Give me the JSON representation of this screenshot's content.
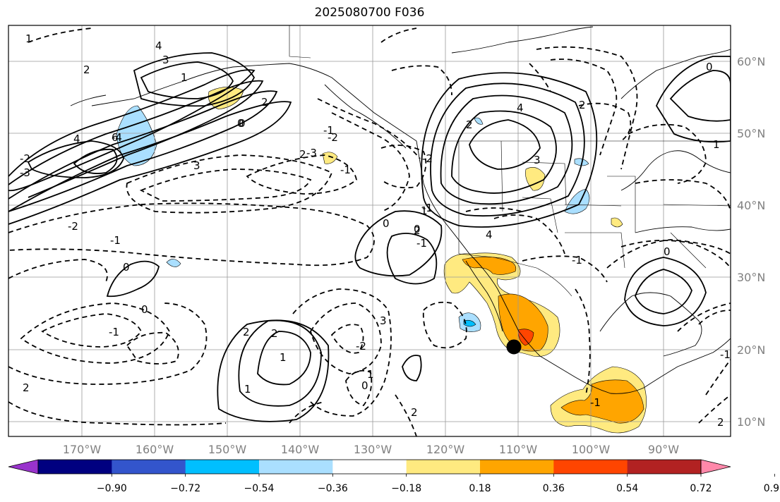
{
  "title": "2025080700 F036",
  "lon_labels": [
    "170°W",
    "160°W",
    "150°W",
    "140°W",
    "130°W",
    "120°W",
    "110°W",
    "100°W",
    "90°W"
  ],
  "lat_labels": [
    "60°N",
    "50°N",
    "40°N",
    "30°N",
    "20°N",
    "10°N"
  ],
  "colorbar": {
    "colors": [
      "#9933cc",
      "#000080",
      "#3355cc",
      "#00bfff",
      "#aadfff",
      "#ffffff",
      "#ffea80",
      "#ffa500",
      "#ff4500",
      "#b22222",
      "#ff88aa"
    ],
    "ticks": [
      "−0.90",
      "−0.72",
      "−0.54",
      "−0.36",
      "−0.18",
      "0.18",
      "0.36",
      "0.54",
      "0.72",
      "0.90"
    ]
  },
  "contour_labels": [
    "1",
    "2",
    "3",
    "4",
    "6",
    "1",
    "2",
    "0",
    "-1",
    "-2",
    "-3",
    "-4",
    "6",
    "4",
    "3",
    "2",
    "0",
    "-2",
    "-1",
    "0",
    "-3",
    "-2",
    "-1",
    "2",
    "1",
    "-1",
    "0",
    "2",
    "1",
    "2",
    "4",
    "2",
    "3",
    "2",
    "-2",
    "-1",
    "-1",
    "-1",
    "0",
    "0",
    "1",
    "1",
    "0",
    "-2",
    "3",
    "2",
    "1",
    "0",
    "0",
    "-1",
    "-1",
    "2",
    "4",
    "2"
  ]
}
